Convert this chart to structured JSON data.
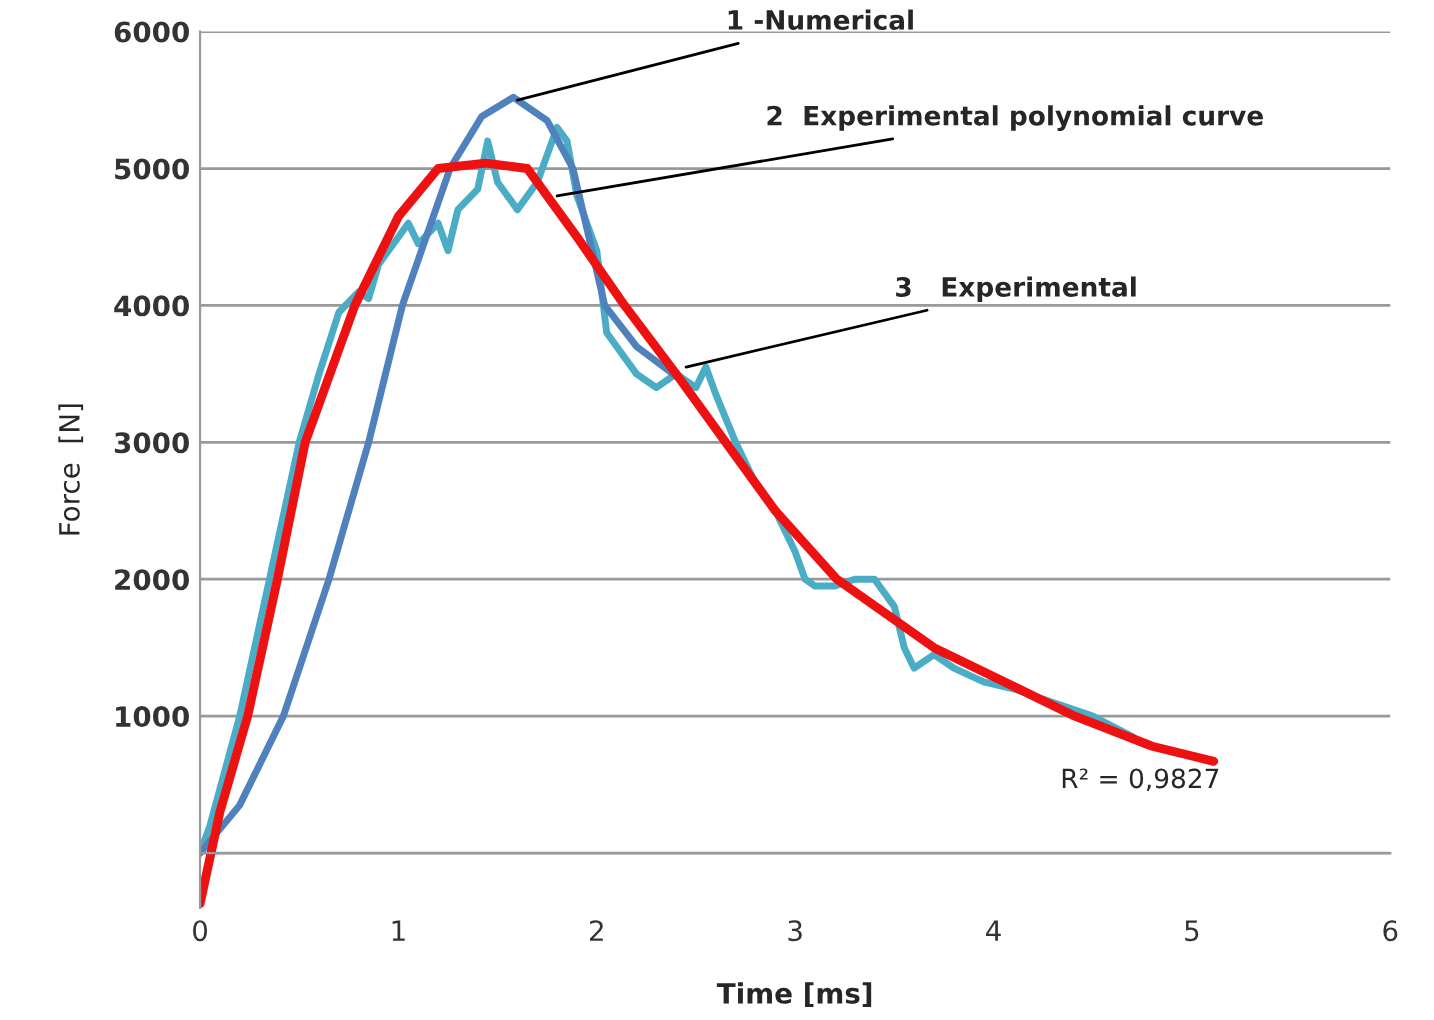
{
  "chart_data": {
    "type": "line",
    "xlabel": "Time [ms]",
    "ylabel": "Force  [N]",
    "xlim": [
      0,
      6
    ],
    "xticks": [
      0,
      1,
      2,
      3,
      4,
      5,
      6
    ],
    "ylim": [
      -400,
      6000
    ],
    "yticks": [
      {
        "value": 0,
        "label": null
      },
      1000,
      2000,
      3000,
      4000,
      5000,
      6000
    ],
    "grid": "y",
    "legend": false,
    "marker": "none",
    "line_style": "solid",
    "series": [
      {
        "color": "#4bacc6",
        "x": [
          0,
          0.05,
          0.2,
          0.35,
          0.5,
          0.6,
          0.7,
          0.8,
          0.85,
          0.9,
          1.0,
          1.05,
          1.1,
          1.2,
          1.25,
          1.3,
          1.4,
          1.45,
          1.5,
          1.55,
          1.6,
          1.7,
          1.75,
          1.8,
          1.85,
          1.9,
          2.0,
          2.05,
          2.1,
          2.2,
          2.3,
          2.4,
          2.5,
          2.55,
          2.6,
          2.7,
          2.8,
          2.9,
          3.0,
          3.05,
          3.1,
          3.2,
          3.3,
          3.4,
          3.5,
          3.55,
          3.6,
          3.7,
          3.8,
          3.95,
          4.1,
          4.3,
          4.5,
          4.7,
          4.75
        ],
        "values": [
          0,
          200,
          1000,
          2000,
          3000,
          3500,
          3950,
          4100,
          4050,
          4300,
          4500,
          4600,
          4450,
          4600,
          4400,
          4700,
          4850,
          5200,
          4900,
          4800,
          4700,
          4900,
          5100,
          5300,
          5200,
          4800,
          4400,
          3800,
          3700,
          3500,
          3400,
          3500,
          3400,
          3550,
          3350,
          3000,
          2700,
          2500,
          2200,
          2000,
          1950,
          1950,
          2000,
          2000,
          1800,
          1500,
          1350,
          1450,
          1350,
          1250,
          1200,
          1100,
          1000,
          850,
          800
        ]
      },
      {
        "color": "#4f81bd",
        "x": [
          0,
          0.2,
          0.42,
          0.65,
          0.85,
          1.02,
          1.26,
          1.42,
          1.58,
          1.75,
          1.88,
          2.04,
          2.2,
          2.43,
          2.65
        ],
        "values": [
          0,
          350,
          1000,
          2000,
          3000,
          4000,
          5000,
          5380,
          5520,
          5350,
          5000,
          4000,
          3700,
          3450,
          3000
        ]
      },
      {
        "color": "#ee1111",
        "x": [
          0,
          0.1,
          0.24,
          0.39,
          0.53,
          0.78,
          1.0,
          1.2,
          1.44,
          1.65,
          1.9,
          2.14,
          2.4,
          2.65,
          2.9,
          3.21,
          3.7,
          4.41,
          4.8,
          5.11
        ],
        "values": [
          -370,
          300,
          1000,
          2000,
          3000,
          4000,
          4650,
          5000,
          5040,
          5000,
          4500,
          4000,
          3500,
          3000,
          2500,
          2000,
          1500,
          1000,
          780,
          670
        ]
      }
    ],
    "annotations": [
      {
        "text": "1 -Numerical",
        "x": 1.6,
        "y": 5500
      },
      {
        "text": "2  Experimental polynomial curve",
        "x": 1.8,
        "y": 4800
      },
      {
        "text": "3   Experimental",
        "x": 2.45,
        "y": 3550
      },
      "R² = 0,9827"
    ]
  }
}
